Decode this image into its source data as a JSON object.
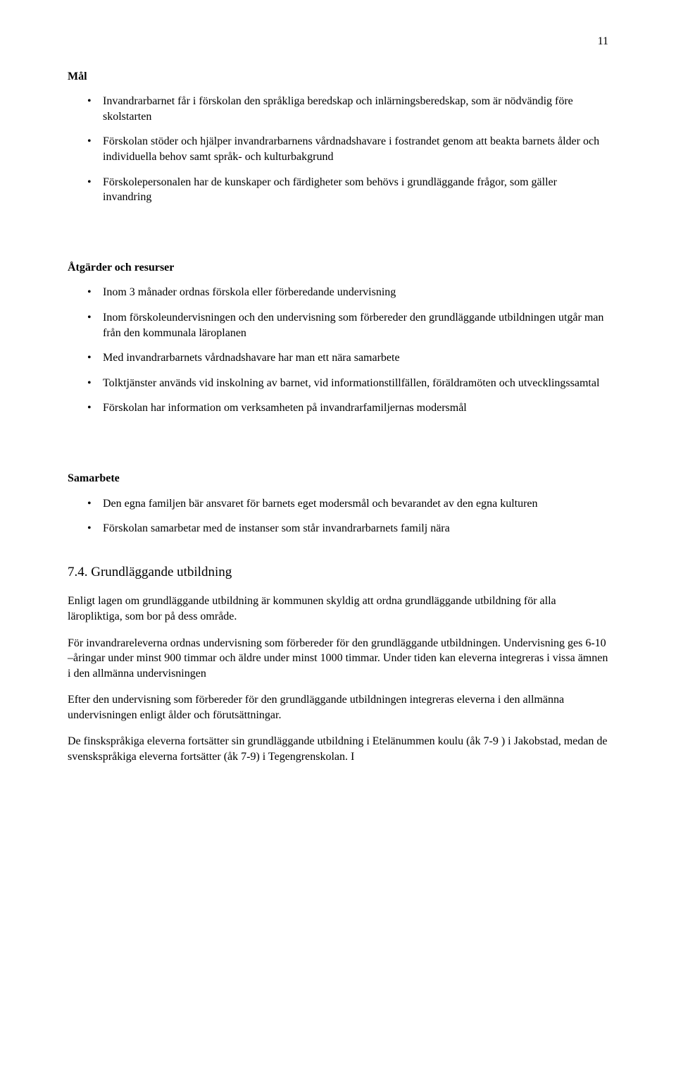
{
  "pageNumber": "11",
  "headings": {
    "mal": "Mål",
    "atgarder": "Åtgärder och resurser",
    "samarbete": "Samarbete",
    "grundlaggande": "7.4. Grundläggande utbildning"
  },
  "mal_items": [
    "Invandrarbarnet får i förskolan den språkliga beredskap och inlärningsberedskap, som är nödvändig före skolstarten",
    "Förskolan stöder och hjälper invandrarbarnens vårdnadshavare i fostrandet genom att beakta barnets ålder och individuella behov samt språk- och kulturbakgrund",
    "Förskolepersonalen har de kunskaper och färdigheter som behövs i grundläggande frågor, som gäller invandring"
  ],
  "atgarder_items": [
    "Inom 3 månader ordnas förskola eller förberedande undervisning",
    "Inom förskoleundervisningen och den undervisning som förbereder den grundläggande utbildningen utgår man från den kommunala läroplanen",
    "Med  invandrarbarnets vårdnadshavare har man ett nära samarbete",
    "Tolktjänster används vid inskolning av barnet, vid informationstillfällen, föräldramöten och utvecklingssamtal",
    "Förskolan har information om verksamheten på invandrarfamiljernas modersmål"
  ],
  "samarbete_items": [
    "Den egna familjen bär ansvaret för barnets eget modersmål och bevarandet av den egna kulturen",
    "Förskolan samarbetar med de instanser som står invandrarbarnets familj nära"
  ],
  "paragraphs": {
    "p1": "Enligt lagen om grundläggande utbildning är kommunen skyldig att ordna grundläggande utbildning för alla läropliktiga, som bor på dess område.",
    "p2": "För invandrareleverna ordnas undervisning som förbereder för den grundläggande utbildningen. Undervisning ges 6-10 –åringar under minst 900 timmar och äldre under minst 1000 timmar. Under tiden kan eleverna integreras i vissa ämnen i den allmänna undervisningen",
    "p3": "Efter den undervisning som förbereder för den grundläggande utbildningen integreras eleverna i den allmänna undervisningen enligt ålder och förutsättningar.",
    "p4": "De finskspråkiga eleverna fortsätter sin grundläggande utbildning i Etelänummen koulu (åk 7-9 ) i Jakobstad, medan de svenskspråkiga eleverna fortsätter (åk 7-9) i Tegengrenskolan. I"
  }
}
